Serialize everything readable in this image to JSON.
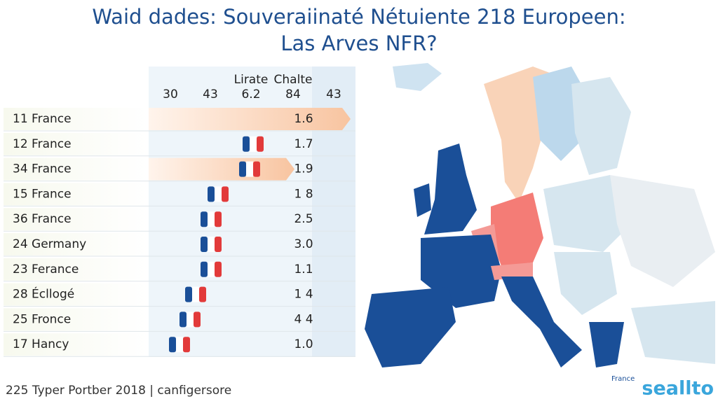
{
  "title": {
    "line1": "Waid dades: Souveraiinaté Nétuiente 218 Europeen:",
    "line2": "Las Arves NFR?"
  },
  "table": {
    "columns": [
      [
        "30"
      ],
      [
        "43"
      ],
      [
        "Lirate",
        "6.2"
      ],
      [
        "Chalte",
        "84"
      ],
      [
        "43"
      ]
    ],
    "rows": [
      [
        "11 France",
        "1.6"
      ],
      [
        "12 France",
        "1.7"
      ],
      [
        "34 France",
        "1.9"
      ],
      [
        "15 France",
        "1 8"
      ],
      [
        "36 France",
        "2.5"
      ],
      [
        "24 Germany",
        "3.0"
      ],
      [
        "23 Ferance",
        "1.1"
      ],
      [
        "28 Écllogé",
        "1 4"
      ],
      [
        "25 Fronce",
        "4 4"
      ],
      [
        "17 Hancy",
        "1.0"
      ]
    ]
  },
  "map": {
    "label": "France"
  },
  "footer": {
    "source": "225 Typer Portber 2018 | canfigersore",
    "logo": "seallto"
  }
}
